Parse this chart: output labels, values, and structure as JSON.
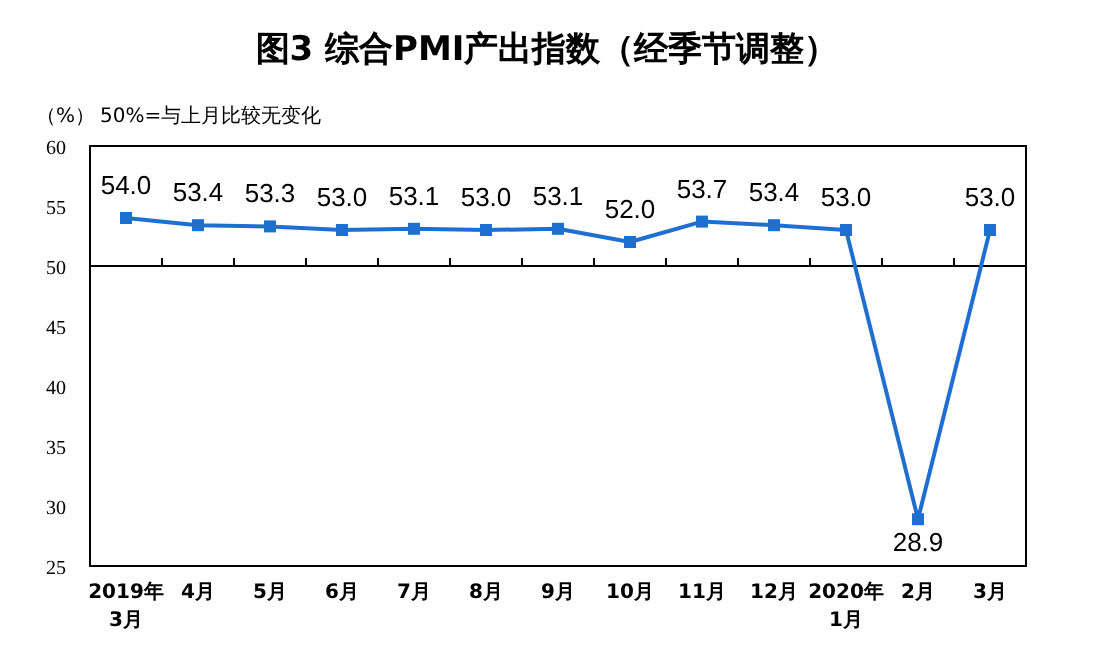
{
  "chart_data": {
    "type": "line",
    "title": "图3 综合PMI产出指数（经季节调整）",
    "ylabel": "（%）",
    "annotations": [
      "50%=与上月比较无变化"
    ],
    "categories": [
      "2019年\n3月",
      "4月",
      "5月",
      "6月",
      "7月",
      "8月",
      "9月",
      "10月",
      "11月",
      "12月",
      "2020年\n1月",
      "2月",
      "3月"
    ],
    "series": [
      {
        "color": "#1f6fd0",
        "values": [
          54.0,
          53.4,
          53.3,
          53.0,
          53.1,
          53.0,
          53.1,
          52.0,
          53.7,
          53.4,
          53.0,
          28.9,
          53.0
        ],
        "value_labels": [
          "54.0",
          "53.4",
          "53.3",
          "53.0",
          "53.1",
          "53.0",
          "53.1",
          "52.0",
          "53.7",
          "53.4",
          "53.0",
          "28.9",
          "53.0"
        ]
      }
    ],
    "ylim": [
      25,
      60
    ],
    "yticks": [
      25,
      30,
      35,
      40,
      45,
      50,
      55,
      60
    ],
    "ref_lines": [
      {
        "axis": "y",
        "value": 50,
        "color": "#000000"
      }
    ],
    "marker": "square",
    "line_style": "solid"
  }
}
